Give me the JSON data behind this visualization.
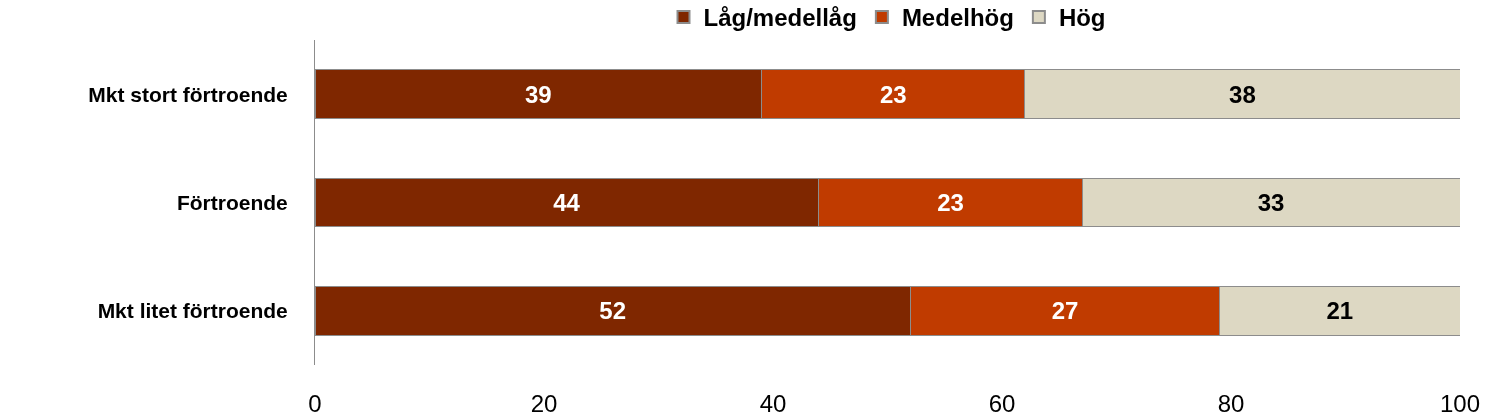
{
  "chart_data": {
    "type": "bar",
    "orientation": "horizontal",
    "stacked": true,
    "categories": [
      "Mkt stort förtroende",
      "Förtroende",
      "Mkt litet förtroende"
    ],
    "series": [
      {
        "name": "Låg/medellåg",
        "color": "#7f2700",
        "values": [
          39,
          44,
          52
        ]
      },
      {
        "name": "Medelhög",
        "color": "#c03b00",
        "values": [
          23,
          23,
          27
        ]
      },
      {
        "name": "Hög",
        "color": "#ddd8c3",
        "values": [
          38,
          33,
          21
        ]
      }
    ],
    "xlim": [
      0,
      100
    ],
    "xticks": [
      0,
      20,
      40,
      60,
      80,
      100
    ],
    "data_labels": true,
    "legend": "top"
  }
}
